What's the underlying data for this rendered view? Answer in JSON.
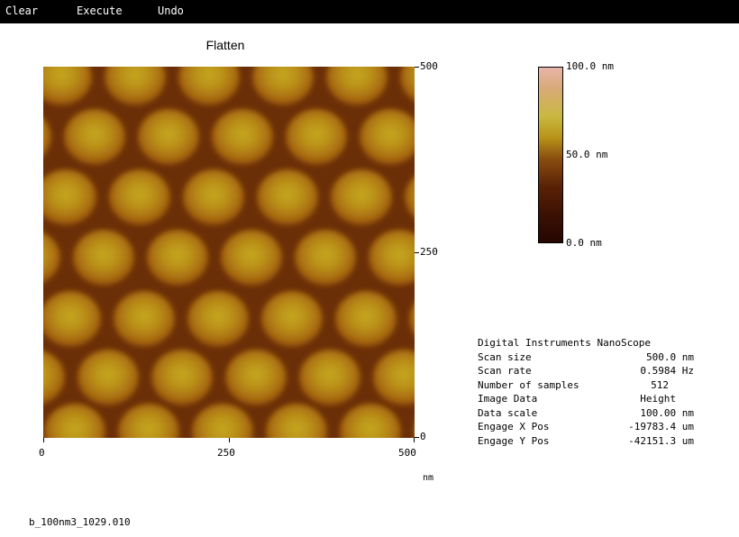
{
  "menu": {
    "clear": "Clear",
    "execute": "Execute",
    "undo": "Undo"
  },
  "plot": {
    "title": "Flatten",
    "x_ticks": [
      "0",
      "250",
      "500"
    ],
    "y_ticks": [
      "500",
      "250",
      "0"
    ],
    "x_unit": "nm"
  },
  "colorbar": {
    "max_label": "100.0 nm",
    "mid_label": "50.0 nm",
    "min_label": "0.0 nm"
  },
  "info": {
    "header": "Digital Instruments NanoScope",
    "rows": [
      {
        "key": "Scan size",
        "value": "500.0 nm"
      },
      {
        "key": "Scan rate",
        "value": "0.5984 Hz"
      },
      {
        "key": "Number of samples",
        "value": "512"
      },
      {
        "key": "Image Data",
        "value": "Height"
      },
      {
        "key": "Data scale",
        "value": "100.00 nm"
      },
      {
        "key": "Engage X Pos",
        "value": "-19783.4 um"
      },
      {
        "key": "Engage Y Pos",
        "value": "-42151.3 um"
      }
    ]
  },
  "filename": "b_100nm3_1029.010",
  "colors": {
    "menubar": "#000000",
    "deep": "#5a2306",
    "groove": "#8c4a10",
    "bump": "#b07a12",
    "peak": "#c4a21e"
  }
}
